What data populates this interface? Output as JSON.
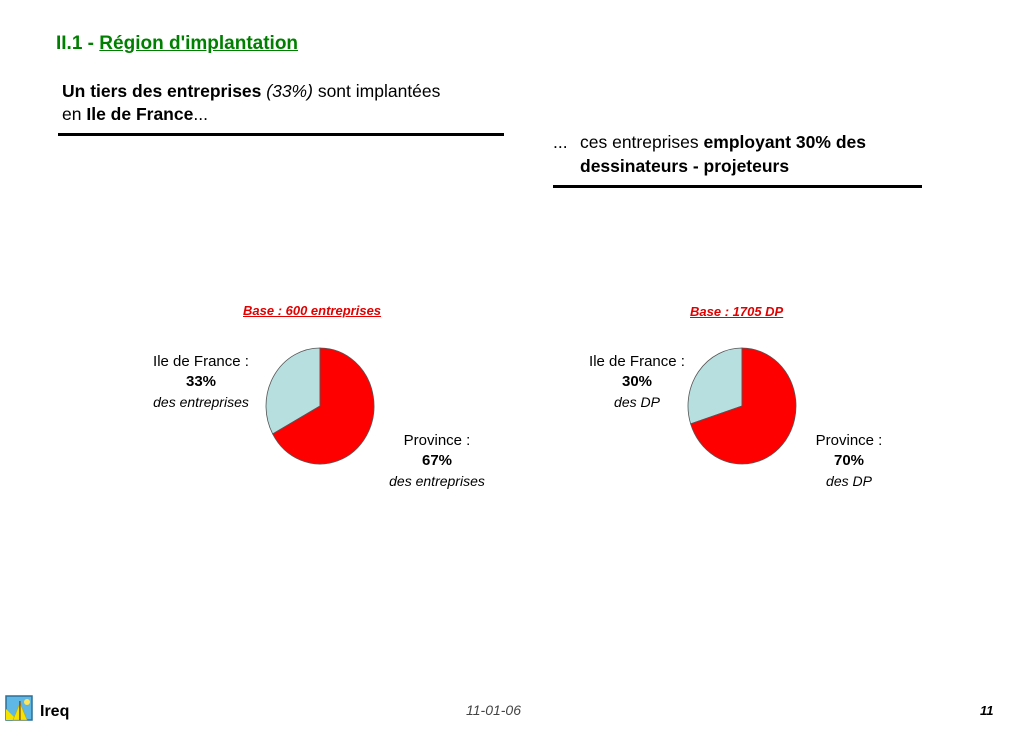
{
  "title": {
    "prefix": "II.1 - ",
    "text": "Région d'implantation"
  },
  "left_heading": {
    "bold1": "Un tiers des entreprises",
    "italic": "(33%)",
    "rest1": "sont implantées",
    "line2_prefix": "en",
    "bold2": "Ile de France",
    "suffix": "..."
  },
  "right_heading": {
    "dots": "...",
    "plain": "ces entreprises",
    "bold": "employant 30% des dessinateurs - projeteurs"
  },
  "colors": {
    "title": "#008000",
    "base_label": "#e00000",
    "province": "#ff0000",
    "ile_de_france": "#b8dfe0"
  },
  "chart_data": [
    {
      "type": "pie",
      "title": "Base : 600 entreprises",
      "slices": [
        {
          "name": "Ile de France",
          "value": 33,
          "color": "#b8dfe0"
        },
        {
          "name": "Province",
          "value": 67,
          "color": "#ff0000"
        }
      ],
      "labels": [
        {
          "name": "Ile de France :",
          "value": "33%",
          "sub": "des entreprises"
        },
        {
          "name": "Province :",
          "value": "67%",
          "sub": "des entreprises"
        }
      ]
    },
    {
      "type": "pie",
      "title": "Base : 1705 DP",
      "slices": [
        {
          "name": "Ile de France",
          "value": 30,
          "color": "#b8dfe0"
        },
        {
          "name": "Province",
          "value": 70,
          "color": "#ff0000"
        }
      ],
      "labels": [
        {
          "name": "Ile de France :",
          "value": "30%",
          "sub": "des DP"
        },
        {
          "name": "Province :",
          "value": "70%",
          "sub": "des DP"
        }
      ]
    }
  ],
  "footer": {
    "logo_text": "Ireq",
    "date": "11-01-06",
    "page": "11"
  }
}
